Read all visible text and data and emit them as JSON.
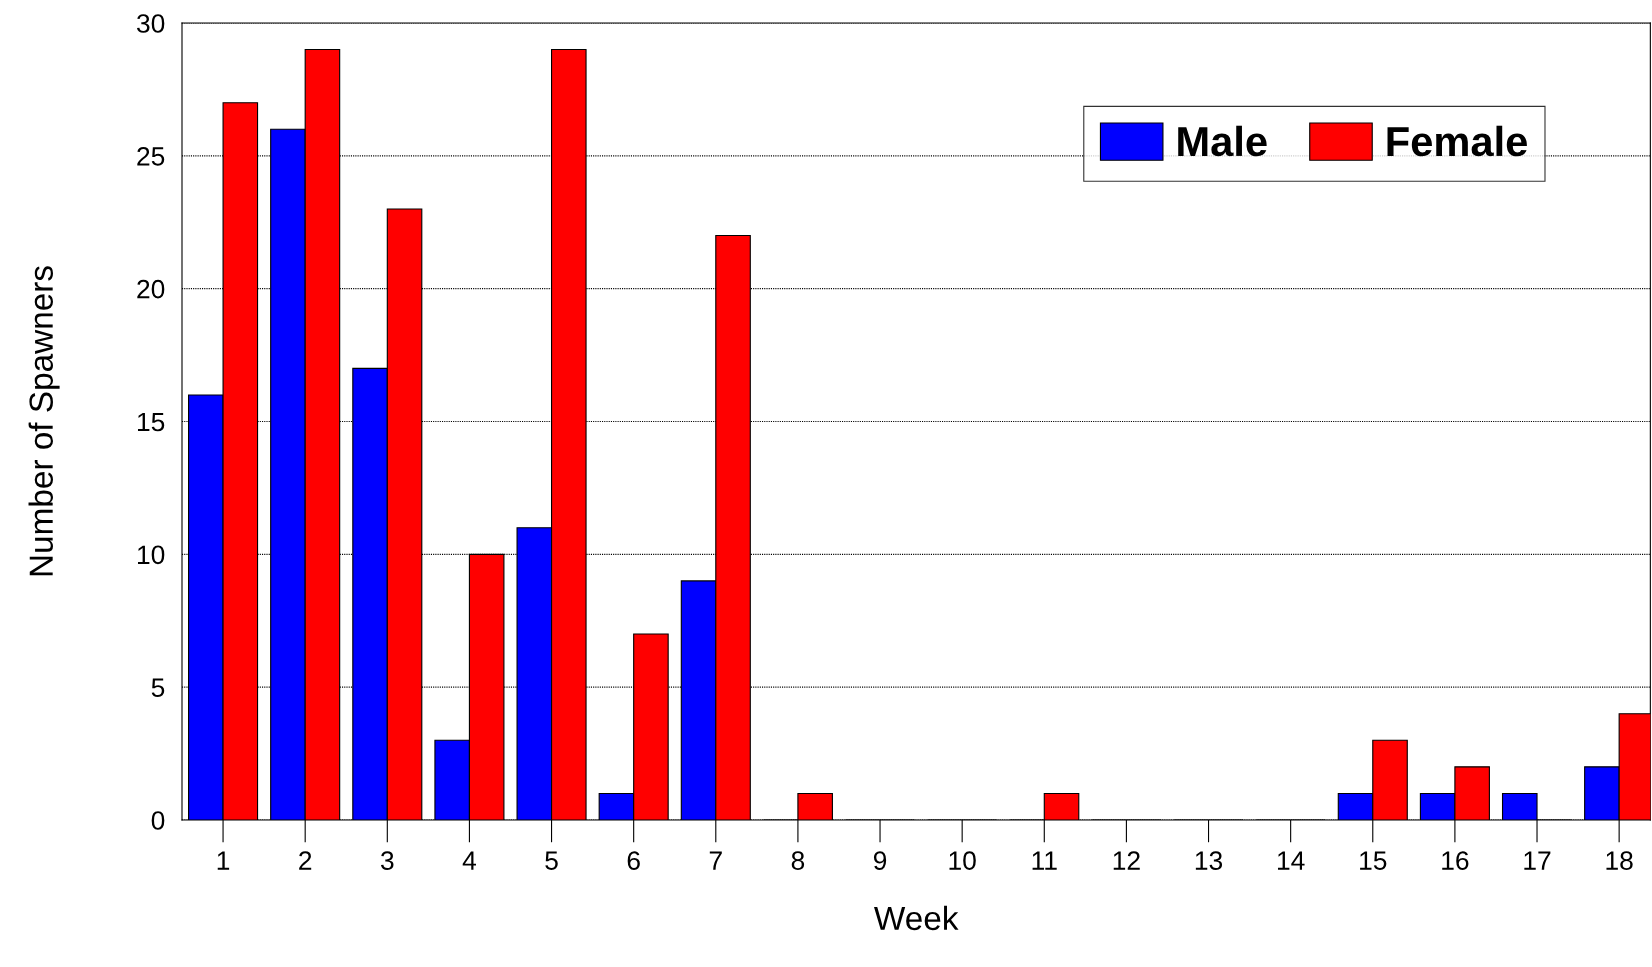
{
  "chart_data": {
    "type": "bar",
    "xlabel": "Week",
    "ylabel": "Number of Spawners",
    "categories": [
      "1",
      "2",
      "3",
      "4",
      "5",
      "6",
      "7",
      "8",
      "9",
      "10",
      "11",
      "12",
      "13",
      "14",
      "15",
      "16",
      "17",
      "18"
    ],
    "series": [
      {
        "name": "Male",
        "color": "#0000ff",
        "values": [
          16,
          26,
          17,
          3,
          11,
          1,
          9,
          0,
          0,
          0,
          0,
          0,
          0,
          0,
          1,
          1,
          1,
          2
        ]
      },
      {
        "name": "Female",
        "color": "#ff0000",
        "values": [
          27,
          29,
          23,
          10,
          29,
          7,
          22,
          1,
          0,
          0,
          1,
          0,
          0,
          0,
          3,
          2,
          0,
          4
        ]
      }
    ],
    "ylim": [
      0,
      30
    ],
    "yticks": [
      0,
      5,
      10,
      15,
      20,
      25,
      30
    ],
    "grid": "y",
    "legend": "top right"
  }
}
